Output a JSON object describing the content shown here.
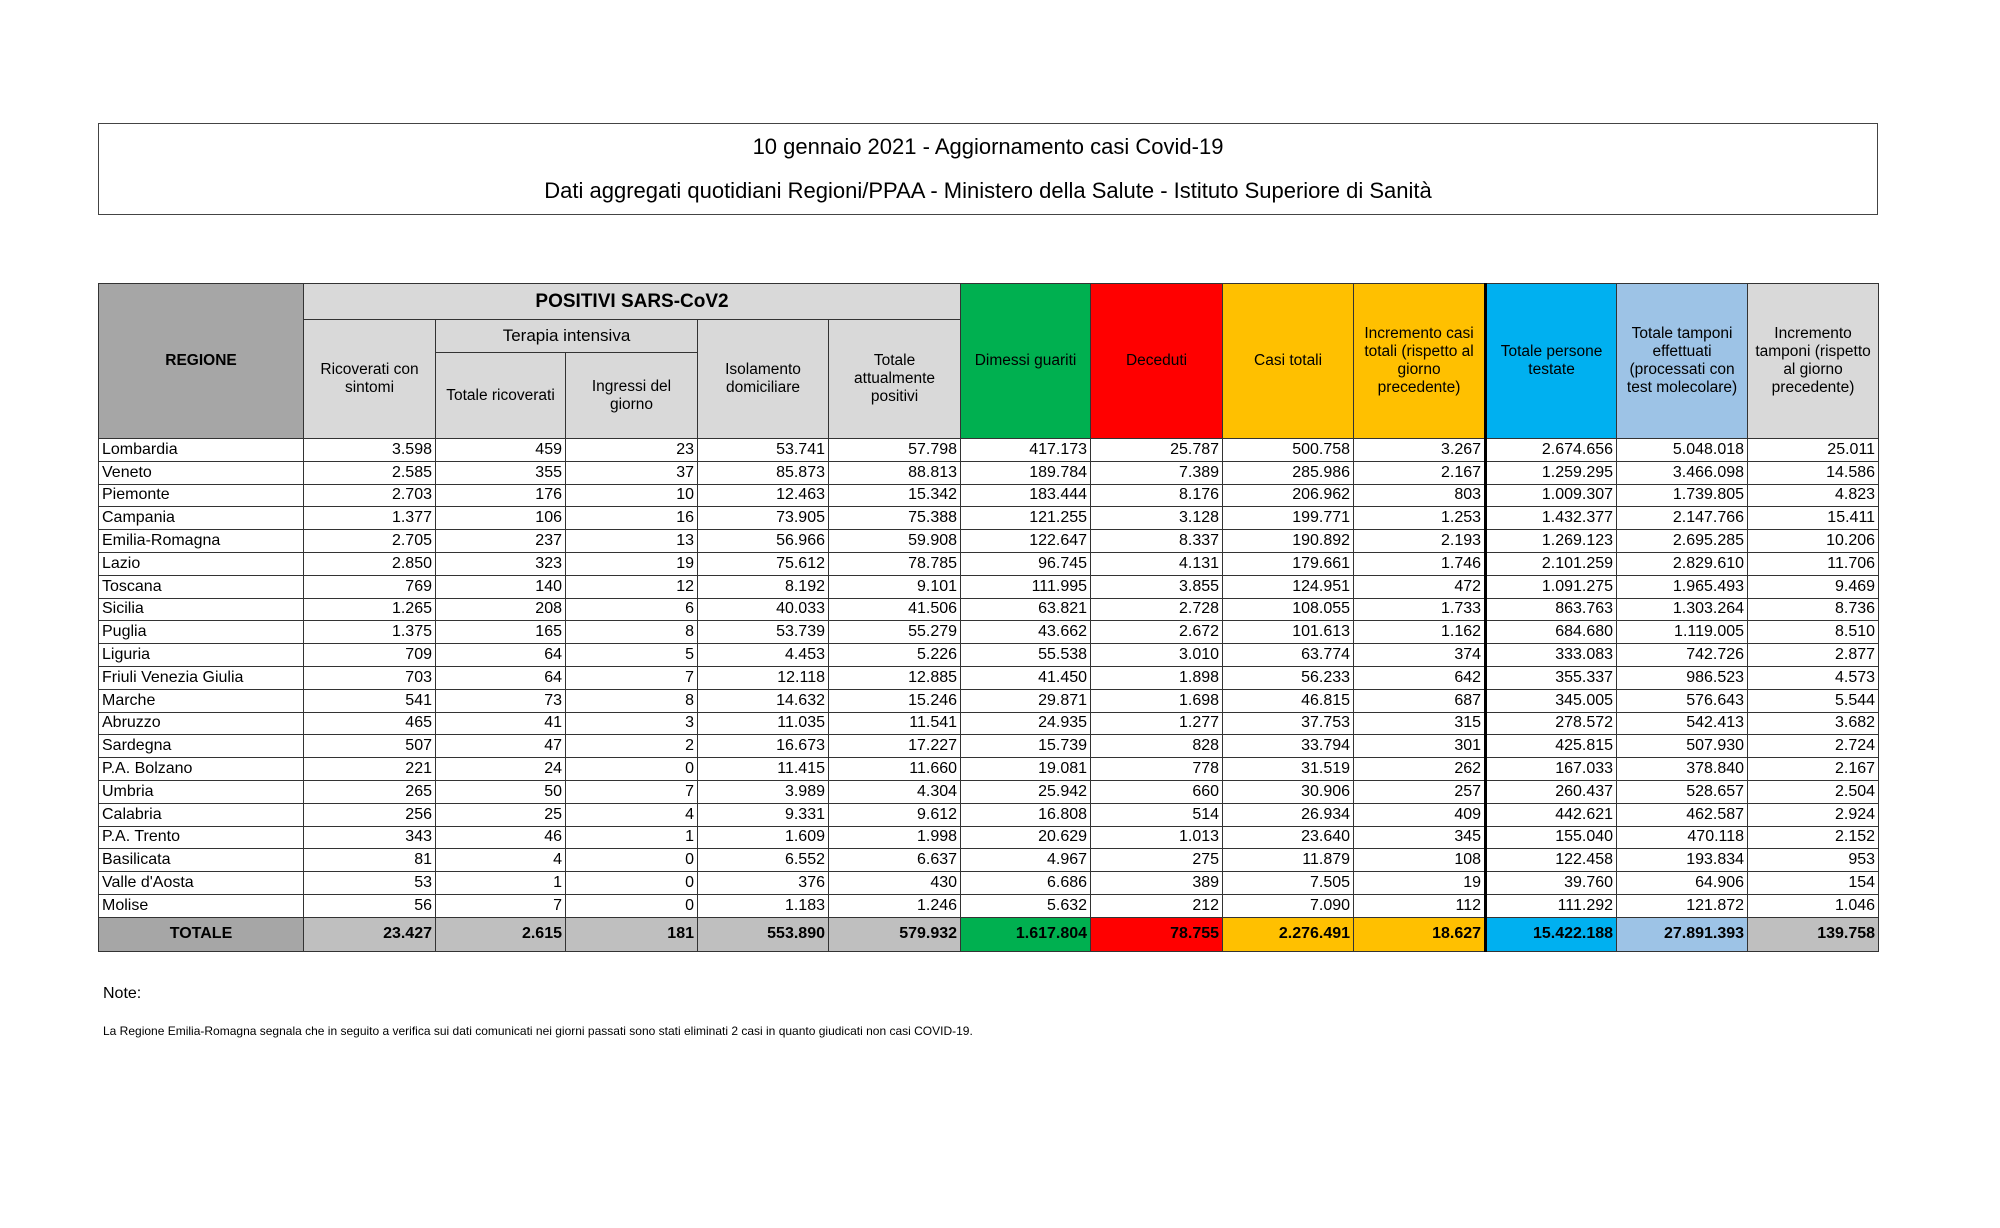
{
  "title": "10 gennaio 2021 - Aggiornamento casi Covid-19",
  "subtitle": "Dati aggregati quotidiani Regioni/PPAA - Ministero della Salute - Istituto Superiore di Sanità",
  "headers": {
    "regione": "REGIONE",
    "positivi": "POSITIVI SARS-CoV2",
    "ricoverati": "Ricoverati con sintomi",
    "terapia": "Terapia intensiva",
    "totale_ricoverati": "Totale ricoverati",
    "ingressi": "Ingressi del giorno",
    "isolamento": "Isolamento domiciliare",
    "totale_positivi": "Totale attualmente positivi",
    "dimessi": "Dimessi guariti",
    "deceduti": "Deceduti",
    "casi_totali": "Casi totali",
    "incremento_casi": "Incremento casi totali (rispetto al giorno precedente)",
    "persone_testate": "Totale persone testate",
    "tamponi": "Totale tamponi effettuati (processati con test molecolare)",
    "incremento_tamponi": "Incremento tamponi (rispetto al giorno precedente)"
  },
  "colors": {
    "dimessi": "#00b050",
    "deceduti": "#ff0000",
    "casi": "#ffc000",
    "persone": "#00b0f0",
    "tamponi": "#9dc3e6"
  },
  "rows": [
    [
      "Lombardia",
      "3.598",
      "459",
      "23",
      "53.741",
      "57.798",
      "417.173",
      "25.787",
      "500.758",
      "3.267",
      "2.674.656",
      "5.048.018",
      "25.011"
    ],
    [
      "Veneto",
      "2.585",
      "355",
      "37",
      "85.873",
      "88.813",
      "189.784",
      "7.389",
      "285.986",
      "2.167",
      "1.259.295",
      "3.466.098",
      "14.586"
    ],
    [
      "Piemonte",
      "2.703",
      "176",
      "10",
      "12.463",
      "15.342",
      "183.444",
      "8.176",
      "206.962",
      "803",
      "1.009.307",
      "1.739.805",
      "4.823"
    ],
    [
      "Campania",
      "1.377",
      "106",
      "16",
      "73.905",
      "75.388",
      "121.255",
      "3.128",
      "199.771",
      "1.253",
      "1.432.377",
      "2.147.766",
      "15.411"
    ],
    [
      "Emilia-Romagna",
      "2.705",
      "237",
      "13",
      "56.966",
      "59.908",
      "122.647",
      "8.337",
      "190.892",
      "2.193",
      "1.269.123",
      "2.695.285",
      "10.206"
    ],
    [
      "Lazio",
      "2.850",
      "323",
      "19",
      "75.612",
      "78.785",
      "96.745",
      "4.131",
      "179.661",
      "1.746",
      "2.101.259",
      "2.829.610",
      "11.706"
    ],
    [
      "Toscana",
      "769",
      "140",
      "12",
      "8.192",
      "9.101",
      "111.995",
      "3.855",
      "124.951",
      "472",
      "1.091.275",
      "1.965.493",
      "9.469"
    ],
    [
      "Sicilia",
      "1.265",
      "208",
      "6",
      "40.033",
      "41.506",
      "63.821",
      "2.728",
      "108.055",
      "1.733",
      "863.763",
      "1.303.264",
      "8.736"
    ],
    [
      "Puglia",
      "1.375",
      "165",
      "8",
      "53.739",
      "55.279",
      "43.662",
      "2.672",
      "101.613",
      "1.162",
      "684.680",
      "1.119.005",
      "8.510"
    ],
    [
      "Liguria",
      "709",
      "64",
      "5",
      "4.453",
      "5.226",
      "55.538",
      "3.010",
      "63.774",
      "374",
      "333.083",
      "742.726",
      "2.877"
    ],
    [
      "Friuli Venezia Giulia",
      "703",
      "64",
      "7",
      "12.118",
      "12.885",
      "41.450",
      "1.898",
      "56.233",
      "642",
      "355.337",
      "986.523",
      "4.573"
    ],
    [
      "Marche",
      "541",
      "73",
      "8",
      "14.632",
      "15.246",
      "29.871",
      "1.698",
      "46.815",
      "687",
      "345.005",
      "576.643",
      "5.544"
    ],
    [
      "Abruzzo",
      "465",
      "41",
      "3",
      "11.035",
      "11.541",
      "24.935",
      "1.277",
      "37.753",
      "315",
      "278.572",
      "542.413",
      "3.682"
    ],
    [
      "Sardegna",
      "507",
      "47",
      "2",
      "16.673",
      "17.227",
      "15.739",
      "828",
      "33.794",
      "301",
      "425.815",
      "507.930",
      "2.724"
    ],
    [
      "P.A. Bolzano",
      "221",
      "24",
      "0",
      "11.415",
      "11.660",
      "19.081",
      "778",
      "31.519",
      "262",
      "167.033",
      "378.840",
      "2.167"
    ],
    [
      "Umbria",
      "265",
      "50",
      "7",
      "3.989",
      "4.304",
      "25.942",
      "660",
      "30.906",
      "257",
      "260.437",
      "528.657",
      "2.504"
    ],
    [
      "Calabria",
      "256",
      "25",
      "4",
      "9.331",
      "9.612",
      "16.808",
      "514",
      "26.934",
      "409",
      "442.621",
      "462.587",
      "2.924"
    ],
    [
      "P.A. Trento",
      "343",
      "46",
      "1",
      "1.609",
      "1.998",
      "20.629",
      "1.013",
      "23.640",
      "345",
      "155.040",
      "470.118",
      "2.152"
    ],
    [
      "Basilicata",
      "81",
      "4",
      "0",
      "6.552",
      "6.637",
      "4.967",
      "275",
      "11.879",
      "108",
      "122.458",
      "193.834",
      "953"
    ],
    [
      "Valle d'Aosta",
      "53",
      "1",
      "0",
      "376",
      "430",
      "6.686",
      "389",
      "7.505",
      "19",
      "39.760",
      "64.906",
      "154"
    ],
    [
      "Molise",
      "56",
      "7",
      "0",
      "1.183",
      "1.246",
      "5.632",
      "212",
      "7.090",
      "112",
      "111.292",
      "121.872",
      "1.046"
    ]
  ],
  "total": [
    "TOTALE",
    "23.427",
    "2.615",
    "181",
    "553.890",
    "579.932",
    "1.617.804",
    "78.755",
    "2.276.491",
    "18.627",
    "15.422.188",
    "27.891.393",
    "139.758"
  ],
  "note_label": "Note:",
  "note_text": "La Regione Emilia-Romagna segnala che in seguito a verifica sui dati comunicati nei giorni passati sono stati eliminati 2 casi in quanto giudicati non casi COVID-19."
}
